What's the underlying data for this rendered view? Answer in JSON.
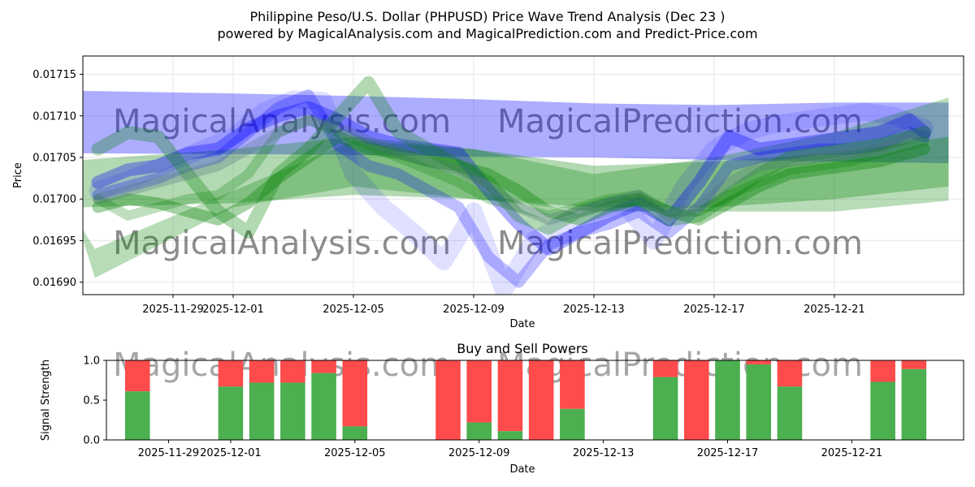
{
  "header": {
    "title_line1": "Philippine Peso/U.S. Dollar (PHPUSD) Price Wave Trend Analysis (Dec 23 )",
    "title_line2": "powered by MagicalAnalysis.com and MagicalPrediction.com and Predict-Price.com"
  },
  "watermarks": [
    "MagicalAnalysis.com",
    "MagicalPrediction.com"
  ],
  "colors": {
    "blue": "#0000ff",
    "green": "#008000",
    "buy": "#4caf50",
    "sell": "#ff4b4b",
    "grid": "#e6e6e6",
    "watermark": "#c8c8c8"
  },
  "chart_data": [
    {
      "type": "line",
      "title": "",
      "xlabel": "Date",
      "ylabel": "Price",
      "xlim": [
        -3,
        26.3
      ],
      "ylim": [
        0.016885,
        0.017172
      ],
      "grid": true,
      "x_ticks": [
        {
          "x": 0,
          "label": "2025-11-29"
        },
        {
          "x": 2,
          "label": "2025-12-01"
        },
        {
          "x": 6,
          "label": "2025-12-05"
        },
        {
          "x": 10,
          "label": "2025-12-09"
        },
        {
          "x": 14,
          "label": "2025-12-13"
        },
        {
          "x": 18,
          "label": "2025-12-17"
        },
        {
          "x": 22,
          "label": "2025-12-21"
        }
      ],
      "y_ticks": [
        "0.01690",
        "0.01695",
        "0.01700",
        "0.01705",
        "0.01710",
        "0.01715"
      ],
      "series": [
        {
          "name": "blue-band-upper",
          "color": "blue",
          "kind": "band",
          "opacity": 0.32,
          "x": [
            -3,
            2,
            6,
            10,
            14,
            18,
            22,
            25.8
          ],
          "upper": [
            0.01713,
            0.017127,
            0.017124,
            0.01712,
            0.017115,
            0.017113,
            0.017116,
            0.017116
          ],
          "lower": [
            0.017055,
            0.017054,
            0.017053,
            0.017051,
            0.01705,
            0.017047,
            0.017045,
            0.017043
          ]
        },
        {
          "name": "green-band-wide",
          "color": "green",
          "kind": "band",
          "opacity": 0.28,
          "x": [
            -3.2,
            -2.6,
            2,
            6,
            10,
            14,
            18,
            22,
            25.8
          ],
          "upper": [
            0.016975,
            0.01694,
            0.01701,
            0.01707,
            0.01706,
            0.01703,
            0.01705,
            0.01708,
            0.017122
          ],
          "lower": [
            0.016975,
            0.016905,
            0.01699,
            0.017015,
            0.017,
            0.016985,
            0.016985,
            0.016985,
            0.016998
          ]
        },
        {
          "name": "green-band-flat",
          "color": "green",
          "kind": "band",
          "opacity": 0.3,
          "x": [
            -3,
            2,
            6,
            10,
            14,
            18,
            22,
            25.8
          ],
          "upper": [
            0.017047,
            0.01706,
            0.017075,
            0.01706,
            0.01704,
            0.017045,
            0.017055,
            0.017075
          ],
          "lower": [
            0.01699,
            0.016995,
            0.017005,
            0.017,
            0.01699,
            0.01699,
            0.017,
            0.017015
          ]
        },
        {
          "name": "blue-wave-deep",
          "color": "blue",
          "kind": "line",
          "width": 22,
          "opacity": 0.12,
          "x": [
            -2.5,
            -1,
            0,
            1,
            2,
            3,
            4,
            5,
            6,
            7,
            8,
            9,
            10,
            11,
            12,
            13,
            14,
            15,
            16,
            17,
            18,
            19,
            20,
            21,
            22,
            23,
            24,
            25
          ],
          "y": [
            0.01701,
            0.01703,
            0.017045,
            0.01706,
            0.017075,
            0.017105,
            0.01712,
            0.017118,
            0.01703,
            0.01699,
            0.01696,
            0.016925,
            0.016985,
            0.01689,
            0.01695,
            0.01697,
            0.016985,
            0.016995,
            0.01695,
            0.017015,
            0.01706,
            0.01708,
            0.01709,
            0.017095,
            0.0171,
            0.017105,
            0.0171,
            0.017085
          ]
        },
        {
          "name": "blue-wave-main",
          "color": "blue",
          "kind": "line",
          "width": 16,
          "opacity": 0.32,
          "x": [
            -2.5,
            -1.5,
            -0.5,
            0.5,
            1.5,
            2.5,
            3.5,
            4.5,
            5.5,
            6.5,
            7.5,
            8.5,
            9.5,
            10.5,
            11.5,
            12.5,
            13.5,
            14.5,
            15.5,
            16.5,
            17.5,
            18.5,
            19.5,
            20.5,
            21.5,
            22.5,
            23.5,
            24.5,
            25
          ],
          "y": [
            0.01702,
            0.017035,
            0.01704,
            0.017055,
            0.01706,
            0.017085,
            0.0171,
            0.01711,
            0.017095,
            0.017075,
            0.017065,
            0.01706,
            0.017055,
            0.01701,
            0.01697,
            0.01694,
            0.01696,
            0.01698,
            0.016995,
            0.016975,
            0.01702,
            0.017075,
            0.01706,
            0.017065,
            0.01707,
            0.017075,
            0.01708,
            0.017095,
            0.01708
          ]
        },
        {
          "name": "blue-wave-b",
          "color": "blue",
          "kind": "line",
          "width": 14,
          "opacity": 0.25,
          "x": [
            -2.5,
            -1.5,
            -0.5,
            0.5,
            1.5,
            2.5,
            3.5,
            4.5,
            5.5,
            6.5,
            7.5,
            8.5,
            9.5,
            10.5,
            11.5,
            12.5,
            13.5,
            14.5,
            15.5,
            16.5,
            17.5,
            18.5,
            19.5,
            20.5,
            21.5,
            22.5,
            23.5,
            24.5,
            25
          ],
          "y": [
            0.017005,
            0.017015,
            0.017025,
            0.01704,
            0.01705,
            0.01708,
            0.01711,
            0.017125,
            0.017065,
            0.01704,
            0.01703,
            0.01701,
            0.01699,
            0.01693,
            0.0169,
            0.016945,
            0.01696,
            0.01697,
            0.016985,
            0.01696,
            0.01699,
            0.01704,
            0.01705,
            0.017055,
            0.01706,
            0.01706,
            0.017065,
            0.01708,
            0.017075
          ]
        },
        {
          "name": "green-wave-a",
          "color": "green",
          "kind": "line",
          "width": 16,
          "opacity": 0.3,
          "x": [
            -2.5,
            -1.5,
            -0.5,
            0.5,
            1.5,
            2.5,
            3.5,
            4.5,
            5.5,
            6.5,
            7.5,
            8.5,
            9.5,
            10.5,
            11.5,
            12.5,
            13.5,
            14.5,
            15.5,
            16.5,
            17.5,
            18.5,
            19.5,
            20.5,
            21.5,
            22.5,
            23.5,
            24.5,
            25
          ],
          "y": [
            0.01706,
            0.01708,
            0.017075,
            0.01703,
            0.016985,
            0.01696,
            0.01703,
            0.01706,
            0.0171,
            0.01714,
            0.01708,
            0.01706,
            0.01704,
            0.01702,
            0.01698,
            0.016965,
            0.016985,
            0.016995,
            0.017,
            0.016975,
            0.01698,
            0.017005,
            0.01703,
            0.01705,
            0.017055,
            0.01706,
            0.017065,
            0.017075,
            0.01708
          ]
        },
        {
          "name": "green-wave-b",
          "color": "green",
          "kind": "line",
          "width": 14,
          "opacity": 0.35,
          "x": [
            -2.5,
            -1.5,
            -0.5,
            0.5,
            1.5,
            2.5,
            3.5,
            4.5,
            5.5,
            6.5,
            7.5,
            8.5,
            9.5,
            10.5,
            11.5,
            12.5,
            13.5,
            14.5,
            15.5,
            16.5,
            17.5,
            18.5,
            19.5,
            20.5,
            21.5,
            22.5,
            23.5,
            24.5,
            25
          ],
          "y": [
            0.01699,
            0.017,
            0.016995,
            0.016985,
            0.016975,
            0.016995,
            0.017025,
            0.01705,
            0.017075,
            0.01706,
            0.017055,
            0.017045,
            0.01704,
            0.01703,
            0.01701,
            0.016985,
            0.016975,
            0.01699,
            0.017,
            0.016985,
            0.016975,
            0.016995,
            0.017015,
            0.01703,
            0.017035,
            0.01704,
            0.017045,
            0.017055,
            0.01706
          ]
        },
        {
          "name": "green-wave-c",
          "color": "green",
          "kind": "line",
          "width": 12,
          "opacity": 0.25,
          "x": [
            -2.5,
            -1.5,
            -0.5,
            0.5,
            1.5,
            2.5,
            3.5,
            4.5,
            5.5,
            6.5,
            7.5,
            8.5,
            9.5,
            10.5,
            11.5,
            12.5,
            13.5,
            14.5,
            15.5,
            16.5,
            17.5,
            18.5,
            19.5,
            20.5,
            21.5,
            22.5,
            23.5,
            24.5,
            25
          ],
          "y": [
            0.017,
            0.01698,
            0.01699,
            0.017,
            0.017005,
            0.01703,
            0.01708,
            0.017095,
            0.01708,
            0.017065,
            0.01705,
            0.017035,
            0.01702,
            0.017,
            0.01699,
            0.01698,
            0.01699,
            0.017,
            0.017005,
            0.016985,
            0.016985,
            0.017005,
            0.01702,
            0.017035,
            0.01704,
            0.017045,
            0.017055,
            0.017065,
            0.01707
          ]
        },
        {
          "name": "slate-wave",
          "color": "#507080",
          "kind": "line",
          "width": 13,
          "opacity": 0.3,
          "x": [
            -2.5,
            -1.5,
            -0.5,
            0.5,
            1.5,
            2.5,
            3.5,
            4.5,
            5.5,
            6.5,
            7.5,
            8.5,
            9.5,
            10.5,
            11.5,
            12.5,
            13.5,
            14.5,
            15.5,
            16.5,
            17.5,
            18.5,
            19.5,
            20.5,
            21.5,
            22.5,
            23.5,
            24.5,
            25
          ],
          "y": [
            0.017,
            0.01701,
            0.01702,
            0.01703,
            0.01704,
            0.01706,
            0.01708,
            0.017095,
            0.017085,
            0.01707,
            0.017055,
            0.017045,
            0.017035,
            0.017015,
            0.01699,
            0.016975,
            0.016985,
            0.016995,
            0.017005,
            0.01698,
            0.01699,
            0.01702,
            0.01704,
            0.017045,
            0.01705,
            0.017055,
            0.01706,
            0.017075,
            0.01708
          ]
        }
      ]
    },
    {
      "type": "bar",
      "title": "Buy and Sell Powers",
      "xlabel": "Date",
      "ylabel": "Signal Strength",
      "xlim": [
        -2,
        25.6
      ],
      "ylim": [
        0,
        1
      ],
      "y_ticks": [
        "0.0",
        "0.5",
        "1.0"
      ],
      "x_ticks": [
        {
          "x": 0,
          "label": "2025-11-29"
        },
        {
          "x": 2,
          "label": "2025-12-01"
        },
        {
          "x": 6,
          "label": "2025-12-05"
        },
        {
          "x": 10,
          "label": "2025-12-09"
        },
        {
          "x": 14,
          "label": "2025-12-13"
        },
        {
          "x": 18,
          "label": "2025-12-17"
        },
        {
          "x": 22,
          "label": "2025-12-21"
        }
      ],
      "bars": [
        {
          "x": -1,
          "buy": 0.61
        },
        {
          "x": 2,
          "buy": 0.67
        },
        {
          "x": 3,
          "buy": 0.72
        },
        {
          "x": 4,
          "buy": 0.72
        },
        {
          "x": 5,
          "buy": 0.84
        },
        {
          "x": 6,
          "buy": 0.17
        },
        {
          "x": 9,
          "buy": 0.0
        },
        {
          "x": 10,
          "buy": 0.22
        },
        {
          "x": 11,
          "buy": 0.11
        },
        {
          "x": 12,
          "buy": 0.0
        },
        {
          "x": 13,
          "buy": 0.39
        },
        {
          "x": 16,
          "buy": 0.79
        },
        {
          "x": 17,
          "buy": 0.0
        },
        {
          "x": 18,
          "buy": 1.0
        },
        {
          "x": 19,
          "buy": 0.95
        },
        {
          "x": 20,
          "buy": 0.67
        },
        {
          "x": 23,
          "buy": 0.73
        },
        {
          "x": 24,
          "buy": 0.89
        }
      ]
    }
  ]
}
